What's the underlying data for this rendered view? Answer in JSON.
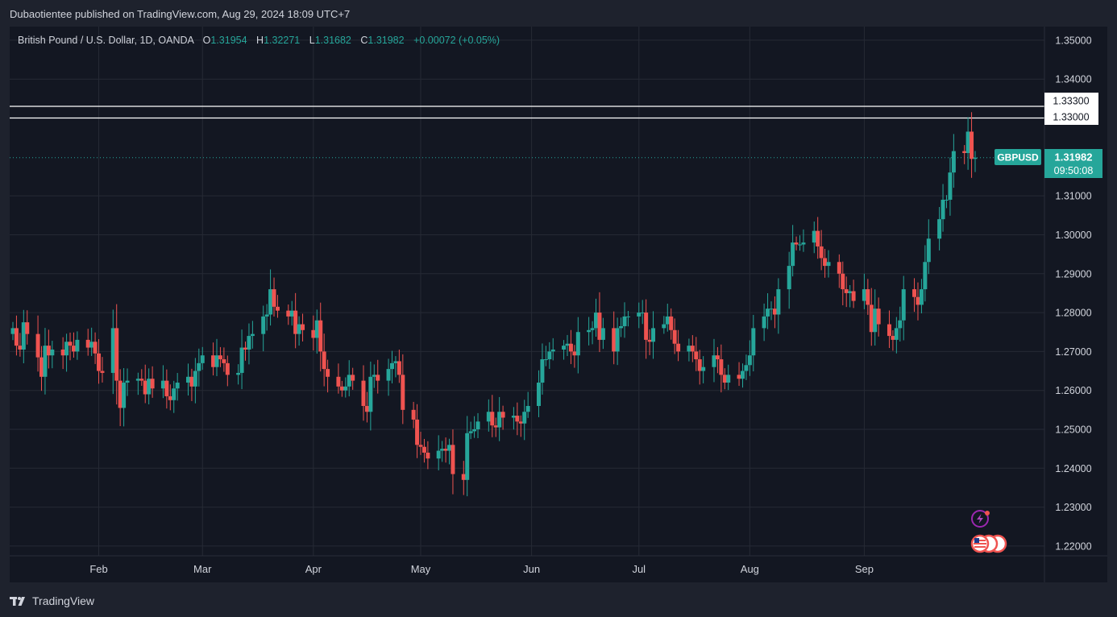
{
  "header": {
    "publisher_line": "Dubaotientee published on TradingView.com, Aug 29, 2024 18:09 UTC+7"
  },
  "legend": {
    "symbol_desc": "British Pound / U.S. Dollar, 1D, OANDA",
    "o_label": "O",
    "o_value": "1.31954",
    "h_label": "H",
    "h_value": "1.32271",
    "l_label": "L",
    "l_value": "1.31682",
    "c_label": "C",
    "c_value": "1.31982",
    "change": "+0.00072 (+0.05%)"
  },
  "price_badge": {
    "symbol": "GBPUSD",
    "price": "1.31982",
    "countdown": "09:50:08"
  },
  "footer": {
    "brand": "TradingView"
  },
  "colors": {
    "up": "#26a69a",
    "down": "#ef5350",
    "background": "#131722",
    "grid": "#262a35",
    "level_line": "#ffffff"
  },
  "icons": [
    "lightning-event-icon",
    "us-flag-event-icon"
  ],
  "chart_data": {
    "type": "candlestick",
    "symbol": "GBPUSD",
    "timeframe": "1D",
    "ylim": [
      1.2175,
      1.3535
    ],
    "y_ticks": [
      1.35,
      1.34,
      1.31,
      1.3,
      1.29,
      1.28,
      1.27,
      1.26,
      1.25,
      1.24,
      1.23,
      1.22
    ],
    "x_ticks": [
      "Feb",
      "Mar",
      "Apr",
      "May",
      "Jun",
      "Jul",
      "Aug",
      "Sep"
    ],
    "horizontal_levels": [
      1.333,
      1.33
    ],
    "current_price": 1.31982,
    "start_date": "2024-01-08",
    "end_date": "2024-08-29",
    "closes": [
      1.276,
      1.2715,
      1.2705,
      1.2775,
      1.2745,
      1.2685,
      1.2635,
      1.2715,
      1.269,
      1.2705,
      1.269,
      1.2725,
      1.2715,
      1.27,
      1.273,
      1.271,
      1.2725,
      1.2695,
      1.265,
      1.2645,
      1.276,
      1.2625,
      1.2555,
      1.262,
      1.2625,
      1.263,
      1.2625,
      1.259,
      1.263,
      1.2605,
      1.2625,
      1.2585,
      1.2575,
      1.2605,
      1.262,
      1.2635,
      1.261,
      1.265,
      1.267,
      1.269,
      1.266,
      1.269,
      1.268,
      1.267,
      1.264,
      1.2645,
      1.271,
      1.2705,
      1.274,
      1.2745,
      1.279,
      1.2795,
      1.286,
      1.2815,
      1.2805,
      1.279,
      1.2805,
      1.2745,
      1.277,
      1.2755,
      1.2735,
      1.278,
      1.27,
      1.2655,
      1.2635,
      1.261,
      1.26,
      1.261,
      1.264,
      1.2625,
      1.256,
      1.2545,
      1.2635,
      1.264,
      1.2625,
      1.2655,
      1.267,
      1.2675,
      1.264,
      1.255,
      1.2525,
      1.246,
      1.2455,
      1.244,
      1.2425,
      1.2445,
      1.245,
      1.2445,
      1.246,
      1.2385,
      1.237,
      1.249,
      1.2495,
      1.25,
      1.252,
      1.2545,
      1.251,
      1.2505,
      1.2545,
      1.253,
      1.2535,
      1.252,
      1.2515,
      1.2545,
      1.256,
      1.262,
      1.268,
      1.268,
      1.27,
      1.2705,
      1.2715,
      1.272,
      1.27,
      1.269,
      1.275,
      1.2755,
      1.276,
      1.28,
      1.273,
      1.276,
      1.27,
      1.276,
      1.2765,
      1.279,
      1.279,
      1.28,
      1.28,
      1.273,
      1.2725,
      1.276,
      1.277,
      1.279,
      1.2755,
      1.272,
      1.27,
      1.2715,
      1.27,
      1.268,
      1.265,
      1.266,
      1.269,
      1.268,
      1.264,
      1.262,
      1.264,
      1.263,
      1.265,
      1.2665,
      1.269,
      1.276,
      1.279,
      1.281,
      1.281,
      1.2795,
      1.286,
      1.292,
      1.298,
      1.2975,
      1.2975,
      1.298,
      1.301,
      1.297,
      1.294,
      1.292,
      1.293,
      1.29,
      1.286,
      1.285,
      1.2855,
      1.283,
      1.286,
      1.282,
      1.275,
      1.281,
      1.277,
      1.274,
      1.273,
      1.276,
      1.278,
      1.286,
      1.284,
      1.282,
      1.286,
      1.293,
      1.299,
      1.304,
      1.309,
      1.309,
      1.316,
      1.3215,
      1.321,
      1.3265,
      1.3195,
      1.3198
    ],
    "series": [
      {
        "name": "GBPUSD",
        "type": "candles"
      }
    ]
  }
}
